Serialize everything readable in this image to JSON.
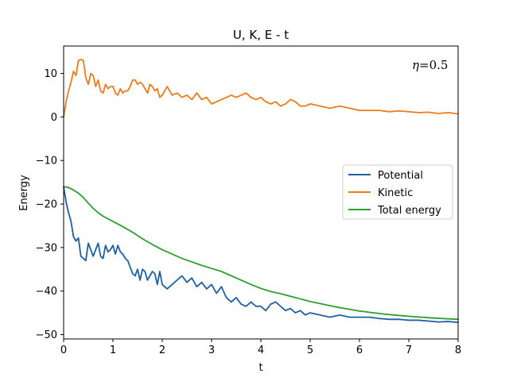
{
  "chart_data": {
    "type": "line",
    "title": "U, K, E - t",
    "xlabel": "t",
    "ylabel": "Energy",
    "xlim": [
      0,
      8
    ],
    "ylim": [
      -51,
      16.3
    ],
    "xticks": [
      0,
      1,
      2,
      3,
      4,
      5,
      6,
      7,
      8
    ],
    "yticks": [
      -50,
      -40,
      -30,
      -20,
      -10,
      0,
      10
    ],
    "xtick_labels": [
      "0",
      "1",
      "2",
      "3",
      "4",
      "5",
      "6",
      "7",
      "8"
    ],
    "ytick_labels": [
      "−50",
      "−40",
      "−30",
      "−20",
      "−10",
      "0",
      "10"
    ],
    "grid": false,
    "legend_position": "center-right",
    "annotation": {
      "symbol": "η",
      "text": "=0.5"
    },
    "series": [
      {
        "name": "Potential",
        "color": "#1f5fa6",
        "x": [
          0,
          0.05,
          0.1,
          0.15,
          0.2,
          0.25,
          0.3,
          0.35,
          0.4,
          0.45,
          0.5,
          0.55,
          0.6,
          0.65,
          0.7,
          0.75,
          0.8,
          0.85,
          0.9,
          0.95,
          1.0,
          1.05,
          1.1,
          1.15,
          1.2,
          1.25,
          1.3,
          1.35,
          1.4,
          1.45,
          1.5,
          1.55,
          1.6,
          1.65,
          1.7,
          1.75,
          1.8,
          1.85,
          1.9,
          1.95,
          2.0,
          2.1,
          2.2,
          2.3,
          2.4,
          2.5,
          2.6,
          2.7,
          2.8,
          2.9,
          3.0,
          3.1,
          3.2,
          3.3,
          3.4,
          3.5,
          3.6,
          3.7,
          3.8,
          3.9,
          4.0,
          4.1,
          4.2,
          4.3,
          4.4,
          4.5,
          4.6,
          4.7,
          4.8,
          4.9,
          5.0,
          5.2,
          5.4,
          5.6,
          5.8,
          6.0,
          6.2,
          6.4,
          6.6,
          6.8,
          7.0,
          7.2,
          7.4,
          7.6,
          7.8,
          8.0
        ],
        "y": [
          -16,
          -19.5,
          -22,
          -24,
          -27.5,
          -28.5,
          -27.8,
          -32,
          -32.5,
          -33,
          -29,
          -30.5,
          -32,
          -30.5,
          -29,
          -32,
          -32.5,
          -29.5,
          -31,
          -30.5,
          -29.5,
          -31.5,
          -29.5,
          -31,
          -31.5,
          -32.5,
          -33,
          -34.5,
          -36,
          -36.5,
          -35,
          -37.5,
          -35,
          -35.5,
          -37.5,
          -36.5,
          -35.5,
          -36,
          -38.5,
          -35.5,
          -38.5,
          -39.5,
          -38.5,
          -37.5,
          -36.5,
          -38,
          -37,
          -39,
          -38,
          -39.5,
          -38.5,
          -40.5,
          -39,
          -41.5,
          -42.5,
          -41.5,
          -43,
          -43.5,
          -42.5,
          -43.5,
          -43.5,
          -44.5,
          -43,
          -42.5,
          -43.5,
          -44.5,
          -44,
          -45,
          -44.5,
          -45.5,
          -45,
          -45.5,
          -46,
          -45.5,
          -46,
          -46,
          -46,
          -46.3,
          -46.5,
          -46.5,
          -46.7,
          -46.7,
          -46.9,
          -47.1,
          -47.0,
          -47.2
        ]
      },
      {
        "name": "Kinetic",
        "color": "#f07a1a",
        "x": [
          0,
          0.05,
          0.1,
          0.15,
          0.2,
          0.25,
          0.3,
          0.35,
          0.4,
          0.45,
          0.5,
          0.55,
          0.6,
          0.65,
          0.7,
          0.75,
          0.8,
          0.85,
          0.9,
          0.95,
          1.0,
          1.05,
          1.1,
          1.15,
          1.2,
          1.25,
          1.3,
          1.35,
          1.4,
          1.45,
          1.5,
          1.55,
          1.6,
          1.65,
          1.7,
          1.75,
          1.8,
          1.85,
          1.9,
          1.95,
          2.0,
          2.1,
          2.2,
          2.3,
          2.4,
          2.5,
          2.6,
          2.7,
          2.8,
          2.9,
          3.0,
          3.1,
          3.2,
          3.3,
          3.4,
          3.5,
          3.6,
          3.7,
          3.8,
          3.9,
          4.0,
          4.1,
          4.2,
          4.3,
          4.4,
          4.5,
          4.6,
          4.7,
          4.8,
          4.9,
          5.0,
          5.2,
          5.4,
          5.6,
          5.8,
          6.0,
          6.2,
          6.4,
          6.6,
          6.8,
          7.0,
          7.2,
          7.4,
          7.6,
          7.8,
          8.0
        ],
        "y": [
          0,
          3.5,
          6,
          8,
          10.5,
          9.5,
          13,
          13.2,
          13,
          9,
          7.5,
          10,
          9.5,
          7,
          8.5,
          6,
          5.5,
          7.5,
          6.5,
          7,
          7,
          5.5,
          5,
          6.5,
          5.5,
          6,
          6,
          7,
          8.5,
          8.5,
          7.5,
          8,
          7.5,
          6.5,
          5.5,
          7.5,
          7,
          6,
          6.5,
          4.5,
          5,
          7,
          5,
          5.5,
          4.5,
          5,
          4,
          5.5,
          4,
          4.5,
          3,
          3.5,
          4,
          4.5,
          5,
          4.5,
          5,
          5.5,
          4.5,
          4,
          4.5,
          3.5,
          3,
          3.5,
          2.5,
          3,
          4,
          3.5,
          2.5,
          2.5,
          3,
          2.5,
          2,
          2.5,
          2,
          1.5,
          1.5,
          1.5,
          1.2,
          1.4,
          1.2,
          1.0,
          1.1,
          0.8,
          1.0,
          0.7
        ]
      },
      {
        "name": "Total energy",
        "color": "#2e9e2e",
        "x": [
          0,
          0.1,
          0.2,
          0.3,
          0.4,
          0.5,
          0.6,
          0.7,
          0.8,
          1.0,
          1.2,
          1.4,
          1.6,
          1.8,
          2.0,
          2.2,
          2.4,
          2.6,
          2.8,
          3.0,
          3.2,
          3.4,
          3.6,
          3.8,
          4.0,
          4.2,
          4.4,
          4.6,
          4.8,
          5.0,
          5.5,
          6.0,
          6.5,
          7.0,
          7.5,
          8.0
        ],
        "y": [
          -16,
          -16.2,
          -16.8,
          -17.5,
          -18.5,
          -19.8,
          -21,
          -22,
          -22.8,
          -24,
          -25.2,
          -26.5,
          -28,
          -29.3,
          -30.5,
          -31.5,
          -32.5,
          -33.3,
          -34.1,
          -34.8,
          -35.5,
          -36.5,
          -37.5,
          -38.5,
          -39.4,
          -40.1,
          -40.6,
          -41.2,
          -41.8,
          -42.4,
          -43.6,
          -44.6,
          -45.3,
          -45.8,
          -46.2,
          -46.5
        ]
      }
    ]
  }
}
